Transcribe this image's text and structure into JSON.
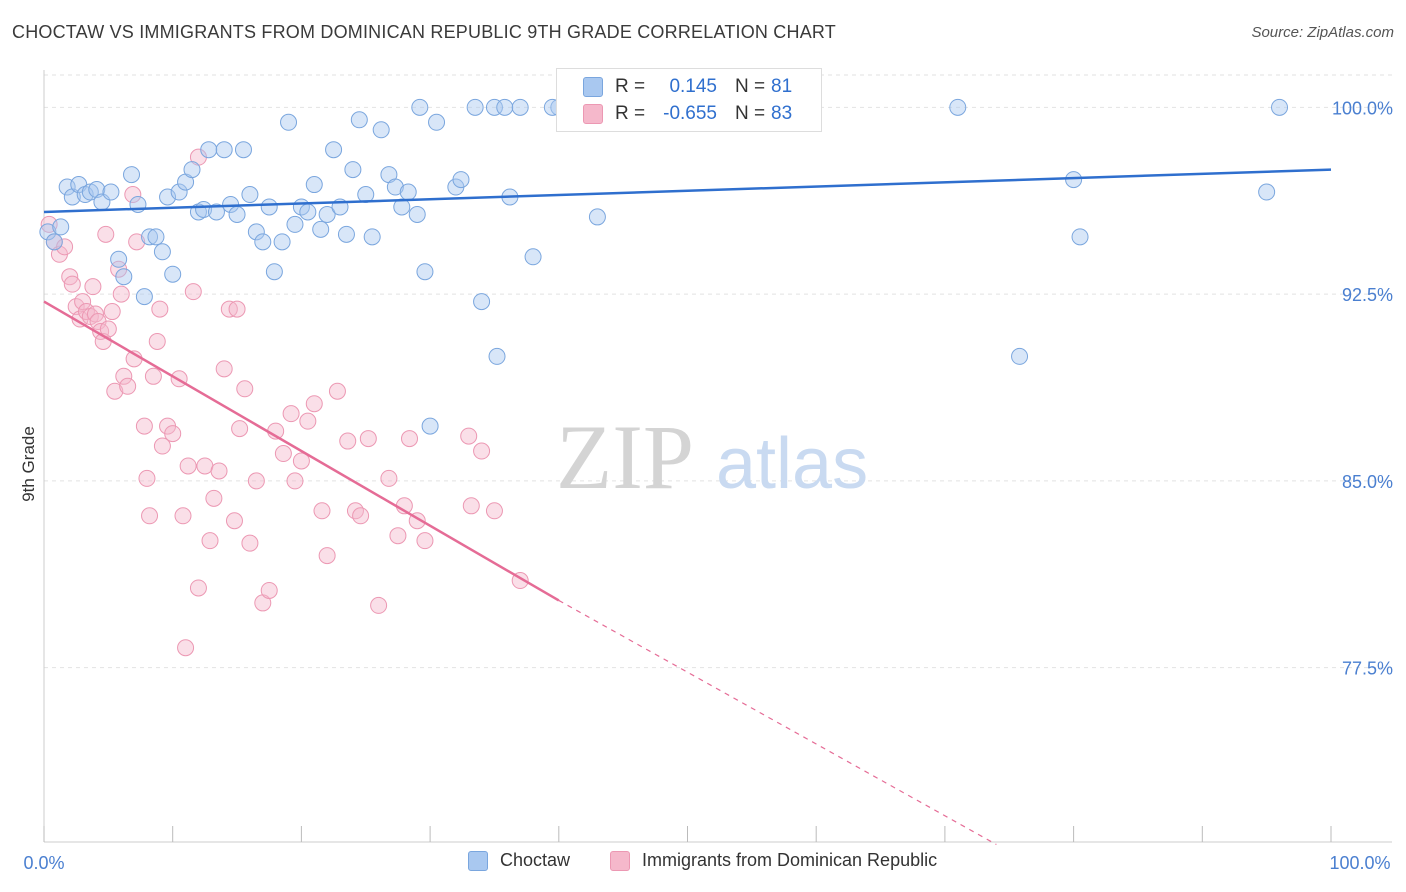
{
  "title": "CHOCTAW VS IMMIGRANTS FROM DOMINICAN REPUBLIC 9TH GRADE CORRELATION CHART",
  "source": "Source: ZipAtlas.com",
  "watermark": {
    "zip": "ZIP",
    "atlas": "atlas"
  },
  "stats": {
    "rows": [
      {
        "r_label": "R =",
        "r_value": "0.145",
        "n_label": "N =",
        "n_value": "81"
      },
      {
        "r_label": "R =",
        "r_value": "-0.655",
        "n_label": "N =",
        "n_value": "83"
      }
    ]
  },
  "legend": {
    "items": [
      {
        "label": "Choctaw"
      },
      {
        "label": "Immigrants from Dominican Republic"
      }
    ]
  },
  "colors": {
    "choctaw_fill": "#a9c8f0",
    "choctaw_stroke": "#7aa6de",
    "choctaw_line": "#2f6fce",
    "dominican_fill": "#f5b8cb",
    "dominican_stroke": "#ec98b3",
    "dominican_line": "#e56c96",
    "tick_label": "#4a7fd0",
    "grid": "#e2e2e2"
  },
  "chart_data": {
    "type": "scatter",
    "title": "CHOCTAW VS IMMIGRANTS FROM DOMINICAN REPUBLIC 9TH GRADE CORRELATION CHART",
    "xlabel": "",
    "ylabel": "9th Grade",
    "xlim": [
      0,
      100
    ],
    "ylim": [
      70.5,
      101.5
    ],
    "x_tick_labels": [
      "0.0%",
      "100.0%"
    ],
    "y_ticks": [
      100.0,
      92.5,
      85.0,
      77.5
    ],
    "y_tick_labels": [
      "100.0%",
      "92.5%",
      "85.0%",
      "77.5%"
    ],
    "grid": true,
    "legend_position": "bottom",
    "series": [
      {
        "name": "Choctaw",
        "trend": {
          "x": [
            0,
            100
          ],
          "y": [
            95.8,
            97.5
          ]
        },
        "points": [
          [
            0.3,
            95.0
          ],
          [
            0.8,
            94.6
          ],
          [
            1.3,
            95.2
          ],
          [
            1.8,
            96.8
          ],
          [
            2.2,
            96.4
          ],
          [
            2.7,
            96.9
          ],
          [
            3.2,
            96.5
          ],
          [
            3.6,
            96.6
          ],
          [
            4.1,
            96.7
          ],
          [
            4.5,
            96.2
          ],
          [
            5.2,
            96.6
          ],
          [
            5.8,
            93.9
          ],
          [
            6.2,
            93.2
          ],
          [
            6.8,
            97.3
          ],
          [
            7.3,
            96.1
          ],
          [
            7.8,
            92.4
          ],
          [
            8.2,
            94.8
          ],
          [
            8.7,
            94.8
          ],
          [
            9.2,
            94.2
          ],
          [
            9.6,
            96.4
          ],
          [
            10.0,
            93.3
          ],
          [
            10.5,
            96.6
          ],
          [
            11.0,
            97.0
          ],
          [
            11.5,
            97.5
          ],
          [
            12.0,
            95.8
          ],
          [
            12.4,
            95.9
          ],
          [
            12.8,
            98.3
          ],
          [
            13.4,
            95.8
          ],
          [
            14.0,
            98.3
          ],
          [
            14.5,
            96.1
          ],
          [
            15.0,
            95.7
          ],
          [
            15.5,
            98.3
          ],
          [
            16.0,
            96.5
          ],
          [
            16.5,
            95.0
          ],
          [
            17.0,
            94.6
          ],
          [
            17.5,
            96.0
          ],
          [
            17.9,
            93.4
          ],
          [
            18.5,
            94.6
          ],
          [
            19.0,
            99.4
          ],
          [
            19.5,
            95.3
          ],
          [
            20.0,
            96.0
          ],
          [
            20.5,
            95.8
          ],
          [
            21.0,
            96.9
          ],
          [
            21.5,
            95.1
          ],
          [
            22.0,
            95.7
          ],
          [
            22.5,
            98.3
          ],
          [
            23.0,
            96.0
          ],
          [
            23.5,
            94.9
          ],
          [
            24.0,
            97.5
          ],
          [
            24.5,
            99.5
          ],
          [
            25.0,
            96.5
          ],
          [
            25.5,
            94.8
          ],
          [
            26.2,
            99.1
          ],
          [
            26.8,
            97.3
          ],
          [
            27.3,
            96.8
          ],
          [
            27.8,
            96.0
          ],
          [
            28.3,
            96.6
          ],
          [
            29.0,
            95.7
          ],
          [
            29.2,
            100.0
          ],
          [
            29.6,
            93.4
          ],
          [
            30.0,
            87.2
          ],
          [
            30.5,
            99.4
          ],
          [
            32.0,
            96.8
          ],
          [
            32.4,
            97.1
          ],
          [
            33.5,
            100.0
          ],
          [
            34.0,
            92.2
          ],
          [
            35.0,
            100.0
          ],
          [
            35.2,
            90.0
          ],
          [
            35.8,
            100.0
          ],
          [
            36.2,
            96.4
          ],
          [
            37.0,
            100.0
          ],
          [
            38.0,
            94.0
          ],
          [
            40.0,
            100.0
          ],
          [
            43.0,
            95.6
          ],
          [
            71.0,
            100.0
          ],
          [
            75.8,
            90.0
          ],
          [
            80.0,
            97.1
          ],
          [
            80.5,
            94.8
          ],
          [
            95.0,
            96.6
          ],
          [
            96.0,
            100.0
          ],
          [
            39.5,
            100.0
          ]
        ]
      },
      {
        "name": "Immigrants from Dominican Republic",
        "trend": {
          "x": [
            0,
            40
          ],
          "y": [
            92.2,
            80.2
          ]
        },
        "trend_dashed": {
          "x": [
            40,
            74
          ],
          "y": [
            80.2,
            70.4
          ]
        },
        "points": [
          [
            0.4,
            95.3
          ],
          [
            0.8,
            94.6
          ],
          [
            1.2,
            94.1
          ],
          [
            1.6,
            94.4
          ],
          [
            2.0,
            93.2
          ],
          [
            2.2,
            92.9
          ],
          [
            2.5,
            92.0
          ],
          [
            2.8,
            91.5
          ],
          [
            3.0,
            92.2
          ],
          [
            3.3,
            91.8
          ],
          [
            3.6,
            91.6
          ],
          [
            3.8,
            92.8
          ],
          [
            4.0,
            91.7
          ],
          [
            4.2,
            91.4
          ],
          [
            4.4,
            91.0
          ],
          [
            4.6,
            90.6
          ],
          [
            4.8,
            94.9
          ],
          [
            5.0,
            91.1
          ],
          [
            5.3,
            91.8
          ],
          [
            5.5,
            88.6
          ],
          [
            5.8,
            93.5
          ],
          [
            6.0,
            92.5
          ],
          [
            6.2,
            89.2
          ],
          [
            6.5,
            88.8
          ],
          [
            6.9,
            96.5
          ],
          [
            7.0,
            89.9
          ],
          [
            7.2,
            94.6
          ],
          [
            7.8,
            87.2
          ],
          [
            8.0,
            85.1
          ],
          [
            8.2,
            83.6
          ],
          [
            8.5,
            89.2
          ],
          [
            8.8,
            90.6
          ],
          [
            9.0,
            91.9
          ],
          [
            9.2,
            86.4
          ],
          [
            9.6,
            87.2
          ],
          [
            10.0,
            86.9
          ],
          [
            10.5,
            89.1
          ],
          [
            10.8,
            83.6
          ],
          [
            11.2,
            85.6
          ],
          [
            11.6,
            92.6
          ],
          [
            12.0,
            80.7
          ],
          [
            12.5,
            85.6
          ],
          [
            12.9,
            82.6
          ],
          [
            13.2,
            84.3
          ],
          [
            13.6,
            85.4
          ],
          [
            14.0,
            89.5
          ],
          [
            14.4,
            91.9
          ],
          [
            14.8,
            83.4
          ],
          [
            15.2,
            87.1
          ],
          [
            15.6,
            88.7
          ],
          [
            16.0,
            82.5
          ],
          [
            16.5,
            85.0
          ],
          [
            17.0,
            80.1
          ],
          [
            17.5,
            80.6
          ],
          [
            18.0,
            87.0
          ],
          [
            18.6,
            86.1
          ],
          [
            19.2,
            87.7
          ],
          [
            19.5,
            85.0
          ],
          [
            20.0,
            85.8
          ],
          [
            20.5,
            87.4
          ],
          [
            21.0,
            88.1
          ],
          [
            21.6,
            83.8
          ],
          [
            22.0,
            82.0
          ],
          [
            22.8,
            88.6
          ],
          [
            23.6,
            86.6
          ],
          [
            24.2,
            83.8
          ],
          [
            24.6,
            83.6
          ],
          [
            25.2,
            86.7
          ],
          [
            26.0,
            80.0
          ],
          [
            26.8,
            85.1
          ],
          [
            27.5,
            82.8
          ],
          [
            28.0,
            84.0
          ],
          [
            28.4,
            86.7
          ],
          [
            29.0,
            83.4
          ],
          [
            29.6,
            82.6
          ],
          [
            33.0,
            86.8
          ],
          [
            33.2,
            84.0
          ],
          [
            34.0,
            86.2
          ],
          [
            35.0,
            83.8
          ],
          [
            37.0,
            81.0
          ],
          [
            12.0,
            98.0
          ],
          [
            15.0,
            91.9
          ],
          [
            11.0,
            78.3
          ]
        ]
      }
    ]
  }
}
